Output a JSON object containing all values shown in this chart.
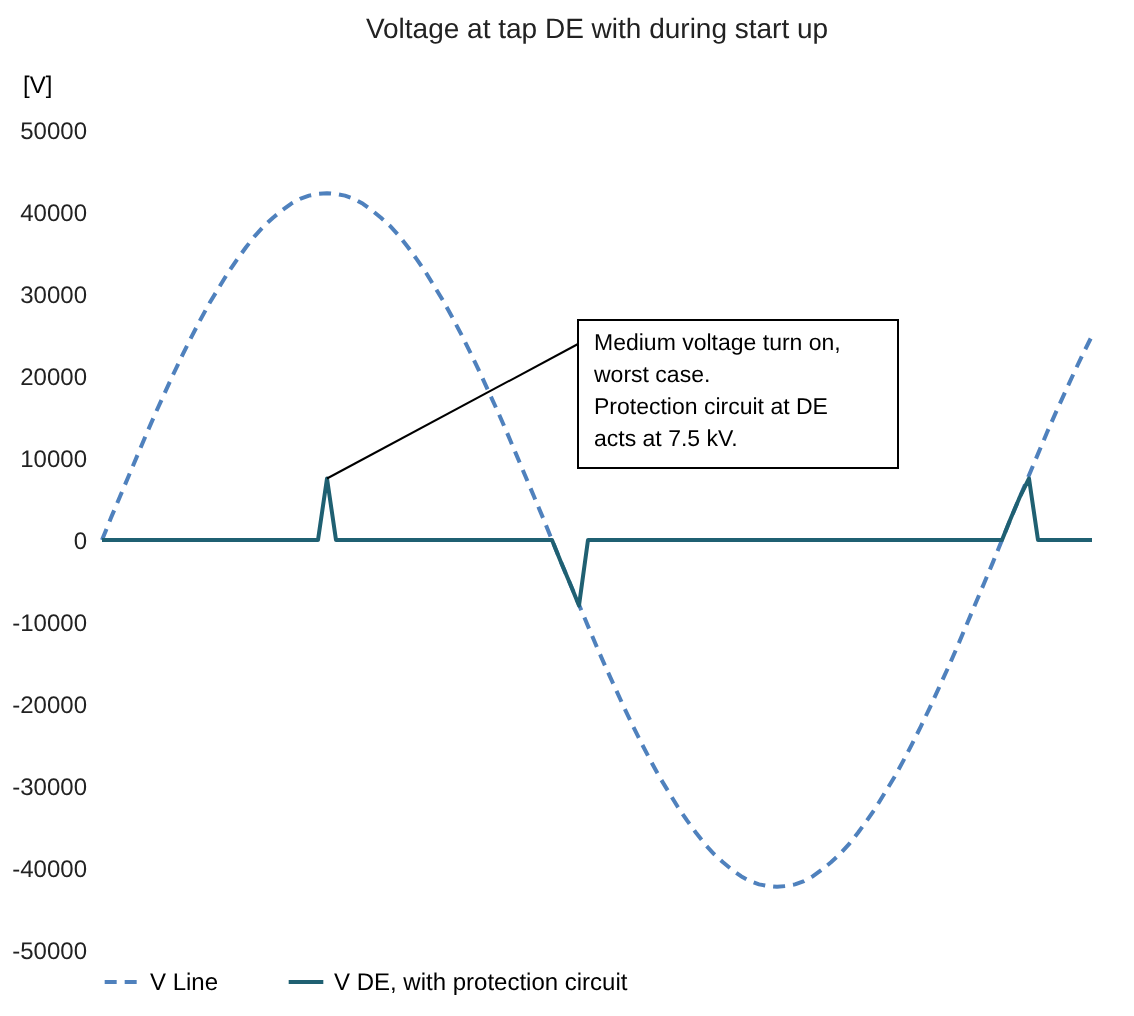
{
  "chart_data": {
    "type": "line",
    "title": "Voltage at tap DE with during start up",
    "ylabel": "[V]",
    "categories": [
      null,
      null,
      null,
      null,
      null,
      null,
      null,
      null,
      null,
      null,
      null,
      null,
      null,
      null,
      null,
      null,
      null,
      null,
      null,
      null,
      null,
      null,
      null,
      null,
      null,
      null,
      null,
      null,
      null,
      null,
      null,
      null,
      null,
      null,
      null,
      null,
      null,
      null,
      null,
      null,
      null,
      null,
      null,
      null,
      null,
      null,
      null,
      null,
      null,
      null,
      null,
      null,
      null,
      null,
      null,
      null,
      null,
      null,
      null,
      null,
      null,
      null,
      null,
      null,
      null,
      null,
      null,
      null,
      null,
      null,
      null,
      null,
      null,
      null,
      null,
      null,
      null,
      null,
      null,
      null,
      null,
      null,
      null,
      null,
      null,
      null,
      null,
      null,
      null,
      null,
      null,
      null,
      null,
      null,
      null,
      null,
      null,
      null,
      null,
      null,
      null,
      null,
      null,
      null,
      null,
      null,
      null,
      null,
      null,
      null,
      null
    ],
    "series": [
      {
        "name": "V Line",
        "color": "#4f81bd",
        "line_style": "dashed",
        "values": [
          0,
          2700,
          5300,
          7900,
          10500,
          13100,
          15600,
          18000,
          20400,
          22700,
          24900,
          27000,
          29000,
          30800,
          32600,
          34200,
          35700,
          37100,
          38300,
          39300,
          40200,
          41000,
          41600,
          42000,
          42200,
          42300,
          42200,
          42000,
          41600,
          41000,
          40200,
          39300,
          38300,
          37100,
          35700,
          34200,
          32600,
          30800,
          29000,
          27000,
          24900,
          22700,
          20400,
          18000,
          15600,
          13100,
          10500,
          7900,
          5300,
          2700,
          0,
          -2700,
          -5300,
          -7900,
          -10500,
          -13100,
          -15600,
          -18000,
          -20400,
          -22700,
          -24900,
          -27000,
          -29000,
          -30800,
          -32600,
          -34200,
          -35700,
          -37100,
          -38300,
          -39300,
          -40200,
          -41000,
          -41600,
          -42000,
          -42200,
          -42300,
          -42200,
          -42000,
          -41600,
          -41000,
          -40200,
          -39300,
          -38300,
          -37100,
          -35700,
          -34200,
          -32600,
          -30800,
          -29000,
          -27000,
          -24900,
          -22700,
          -20400,
          -18000,
          -15600,
          -13100,
          -10500,
          -7900,
          -5300,
          -2700,
          0,
          2700,
          5300,
          7900,
          10500,
          13100,
          15600,
          18000,
          20400,
          22700,
          24900
        ]
      },
      {
        "name": "V DE, with protection circuit",
        "color": "#1f6072",
        "line_style": "solid",
        "values": [
          0,
          0,
          0,
          0,
          0,
          0,
          0,
          0,
          0,
          0,
          0,
          0,
          0,
          0,
          0,
          0,
          0,
          0,
          0,
          0,
          0,
          0,
          0,
          0,
          0,
          7500,
          0,
          0,
          0,
          0,
          0,
          0,
          0,
          0,
          0,
          0,
          0,
          0,
          0,
          0,
          0,
          0,
          0,
          0,
          0,
          0,
          0,
          0,
          0,
          0,
          0,
          -2700,
          -5300,
          -8000,
          0,
          0,
          0,
          0,
          0,
          0,
          0,
          0,
          0,
          0,
          0,
          0,
          0,
          0,
          0,
          0,
          0,
          0,
          0,
          0,
          0,
          0,
          0,
          0,
          0,
          0,
          0,
          0,
          0,
          0,
          0,
          0,
          0,
          0,
          0,
          0,
          0,
          0,
          0,
          0,
          0,
          0,
          0,
          0,
          0,
          0,
          0,
          2700,
          5300,
          7500,
          0,
          0,
          0,
          0,
          0,
          0,
          0
        ]
      }
    ],
    "ylim": [
      -50000,
      50000
    ],
    "yticks": [
      {
        "value": -50000,
        "label": "-50000"
      },
      {
        "value": -40000,
        "label": "-40000"
      },
      {
        "value": -30000,
        "label": "-30000"
      },
      {
        "value": -20000,
        "label": "-20000"
      },
      {
        "value": -10000,
        "label": "-10000"
      },
      {
        "value": 0,
        "label": "0"
      },
      {
        "value": 10000,
        "label": "10000"
      },
      {
        "value": 20000,
        "label": "20000"
      },
      {
        "value": 30000,
        "label": "30000"
      },
      {
        "value": 40000,
        "label": "40000"
      },
      {
        "value": 50000,
        "label": "50000"
      }
    ],
    "grid": false,
    "legend": "bottom",
    "marker": "none",
    "annotations": [
      "Medium voltage turn on,\nworst case.\nProtection circuit at DE\nacts at 7.5 kV."
    ]
  }
}
